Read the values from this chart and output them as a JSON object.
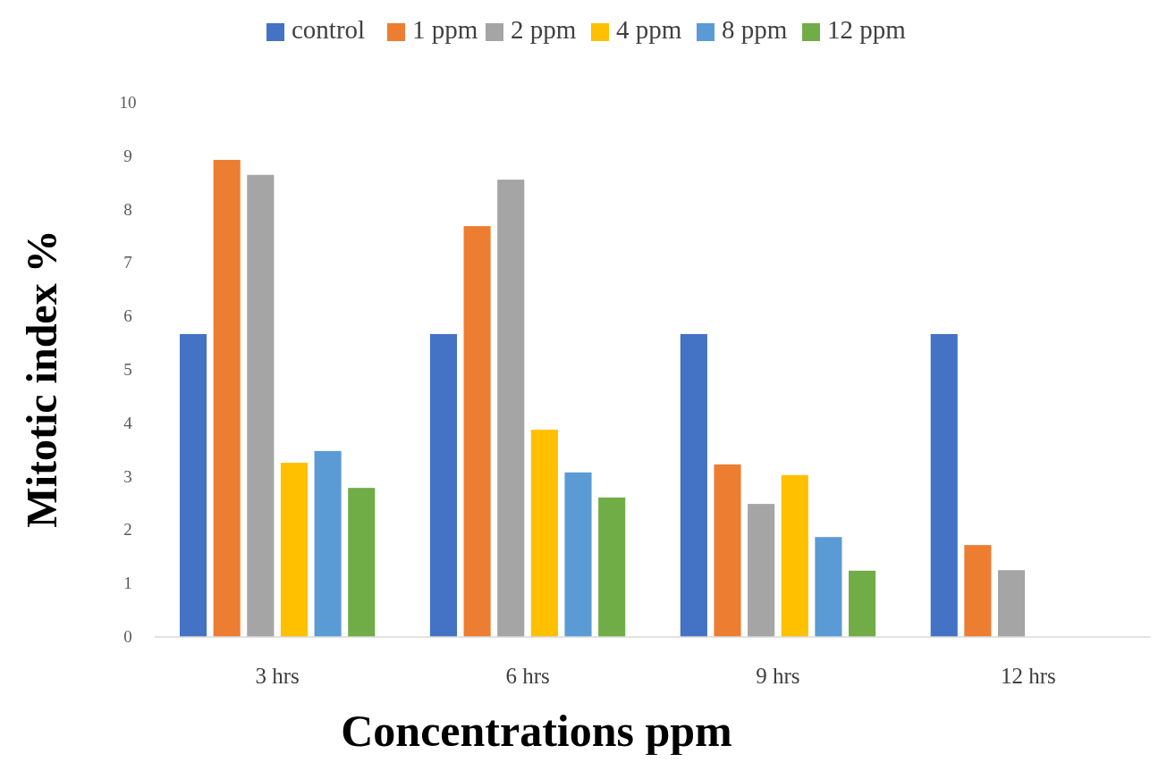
{
  "chart_data": {
    "type": "bar",
    "xlabel": "Concentrations ppm",
    "ylabel": "Mitotic index %",
    "categories": [
      "3 hrs",
      "6 hrs",
      "9 hrs",
      "12 hrs"
    ],
    "series": [
      {
        "name": "control",
        "color": "#4472c4",
        "values": [
          5.67,
          5.67,
          5.67,
          5.67
        ]
      },
      {
        "name": "1 ppm",
        "color": "#ed7d31",
        "values": [
          8.93,
          7.69,
          3.23,
          1.72
        ]
      },
      {
        "name": "2 ppm",
        "color": "#a5a5a5",
        "values": [
          8.65,
          8.56,
          2.49,
          1.25
        ]
      },
      {
        "name": "4 ppm",
        "color": "#ffc000",
        "values": [
          3.26,
          3.88,
          3.03,
          null
        ]
      },
      {
        "name": "8 ppm",
        "color": "#5b9bd5",
        "values": [
          3.48,
          3.08,
          1.87,
          null
        ]
      },
      {
        "name": "12 ppm",
        "color": "#70ad47",
        "values": [
          2.79,
          2.61,
          1.24,
          null
        ]
      }
    ],
    "ylim": [
      0,
      10
    ],
    "yticks": [
      0,
      1,
      2,
      3,
      4,
      5,
      6,
      7,
      8,
      9,
      10
    ],
    "grid": false,
    "legend": "top"
  }
}
